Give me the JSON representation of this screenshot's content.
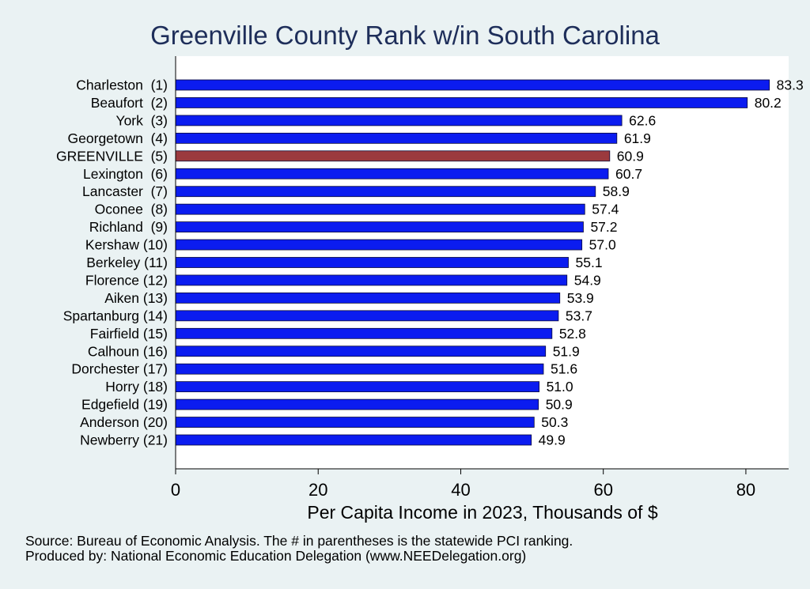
{
  "chart_data": {
    "type": "bar",
    "orientation": "horizontal",
    "title": "Greenville County Rank w/in South Carolina",
    "xlabel": "Per Capita Income in 2023, Thousands of $",
    "ylabel": "",
    "xlim": [
      0,
      86
    ],
    "xticks": [
      "0",
      "20",
      "40",
      "60",
      "80"
    ],
    "grid": false,
    "categories": [
      "Charleston  (1)",
      "Beaufort  (2)",
      "York  (3)",
      "Georgetown  (4)",
      "GREENVILLE  (5)",
      "Lexington  (6)",
      "Lancaster  (7)",
      "Oconee  (8)",
      "Richland  (9)",
      "Kershaw (10)",
      "Berkeley (11)",
      "Florence (12)",
      "Aiken (13)",
      "Spartanburg (14)",
      "Fairfield (15)",
      "Calhoun (16)",
      "Dorchester (17)",
      "Horry (18)",
      "Edgefield (19)",
      "Anderson (20)",
      "Newberry (21)"
    ],
    "values": [
      83.3,
      80.2,
      62.6,
      61.9,
      60.9,
      60.7,
      58.9,
      57.4,
      57.2,
      57.0,
      55.1,
      54.9,
      53.9,
      53.7,
      52.8,
      51.9,
      51.6,
      51.0,
      50.9,
      50.3,
      49.9
    ],
    "value_labels": [
      "83.3",
      "80.2",
      "62.6",
      "61.9",
      "60.9",
      "60.7",
      "58.9",
      "57.4",
      "57.2",
      "57.0",
      "55.1",
      "54.9",
      "53.9",
      "53.7",
      "52.8",
      "51.9",
      "51.6",
      "51.0",
      "50.9",
      "50.3",
      "49.9"
    ],
    "highlight_index": 4,
    "colors": {
      "bar": "#0b1cf0",
      "highlight": "#9b3a3e",
      "background": "#eaf2f3",
      "plot_background": "#ffffff",
      "title": "#1e2e5a"
    }
  },
  "source": {
    "line1": "Source: Bureau of Economic Analysis. The # in parentheses is the statewide PCI ranking.",
    "line2": "Produced by: National Economic Education Delegation (www.NEEDelegation.org)"
  }
}
